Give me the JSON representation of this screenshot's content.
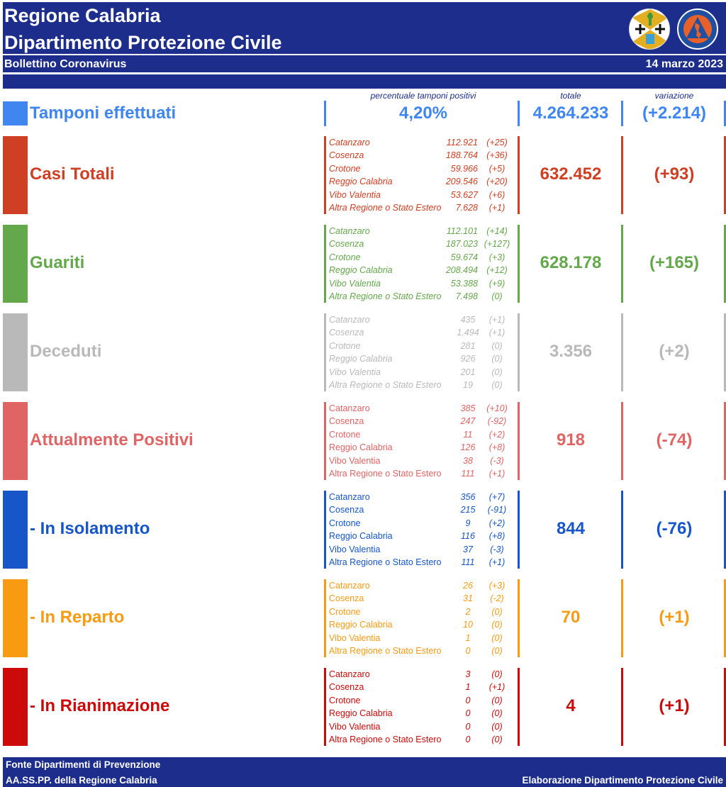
{
  "header": {
    "title_line1": "Regione Calabria",
    "title_line2": "Dipartimento Protezione Civile",
    "subtitle": "Bollettino Coronavirus",
    "date": "14 marzo 2023",
    "logos": [
      "regione-calabria-emblem",
      "protezione-civile-emblem"
    ],
    "colors": {
      "banner": "#1d2d8c",
      "text": "#ffffff"
    }
  },
  "column_headers": {
    "percent": "percentuale tamponi positivi",
    "total": "totale",
    "variation": "variazione"
  },
  "tamponi": {
    "label": "Tamponi effettuati",
    "percent_positive": "4,20%",
    "total": "4.264.233",
    "variation": "(+2.214)",
    "color": "#3f86f0"
  },
  "sections": [
    {
      "key": "casi_totali",
      "label": "Casi Totali",
      "color": "#cf3f23",
      "total": "632.452",
      "variation": "(+93)",
      "rows": [
        {
          "name": "Catanzaro",
          "value": "112.921",
          "delta": "(+25)"
        },
        {
          "name": "Cosenza",
          "value": "188.764",
          "delta": "(+36)"
        },
        {
          "name": "Crotone",
          "value": "59.966",
          "delta": "(+5)"
        },
        {
          "name": "Reggio Calabria",
          "value": "209.546",
          "delta": "(+20)"
        },
        {
          "name": "Vibo Valentia",
          "value": "53.627",
          "delta": "(+6)"
        },
        {
          "name": "Altra Regione o Stato Estero",
          "value": "7.628",
          "delta": "(+1)"
        }
      ]
    },
    {
      "key": "guariti",
      "label": "Guariti",
      "color": "#64a84c",
      "total": "628.178",
      "variation": "(+165)",
      "rows": [
        {
          "name": "Catanzaro",
          "value": "112.101",
          "delta": "(+14)"
        },
        {
          "name": "Cosenza",
          "value": "187.023",
          "delta": "(+127)"
        },
        {
          "name": "Crotone",
          "value": "59.674",
          "delta": "(+3)"
        },
        {
          "name": "Reggio Calabria",
          "value": "208.494",
          "delta": "(+12)"
        },
        {
          "name": "Vibo Valentia",
          "value": "53.388",
          "delta": "(+9)"
        },
        {
          "name": "Altra Regione o Stato Estero",
          "value": "7.498",
          "delta": "(0)"
        }
      ]
    },
    {
      "key": "deceduti",
      "label": "Deceduti",
      "color": "#b9b9b9",
      "total": "3.356",
      "variation": "(+2)",
      "rows": [
        {
          "name": "Catanzaro",
          "value": "435",
          "delta": "(+1)"
        },
        {
          "name": "Cosenza",
          "value": "1.494",
          "delta": "(+1)"
        },
        {
          "name": "Crotone",
          "value": "281",
          "delta": "(0)"
        },
        {
          "name": "Reggio Calabria",
          "value": "926",
          "delta": "(0)"
        },
        {
          "name": "Vibo Valentia",
          "value": "201",
          "delta": "(0)"
        },
        {
          "name": "Altra Regione o Stato Estero",
          "value": "19",
          "delta": "(0)"
        }
      ]
    },
    {
      "key": "attualmente_positivi",
      "label": "Attualmente Positivi",
      "color": "#e06464",
      "total": "918",
      "variation": "(-74)",
      "rows": [
        {
          "name": "Catanzaro",
          "value": "385",
          "delta": "(+10)"
        },
        {
          "name": "Cosenza",
          "value": "247",
          "delta": "(-92)"
        },
        {
          "name": "Crotone",
          "value": "11",
          "delta": "(+2)"
        },
        {
          "name": "Reggio Calabria",
          "value": "126",
          "delta": "(+8)"
        },
        {
          "name": "Vibo Valentia",
          "value": "38",
          "delta": "(-3)"
        },
        {
          "name": "Altra Regione o Stato Estero",
          "value": "111",
          "delta": "(+1)"
        }
      ]
    },
    {
      "key": "in_isolamento",
      "label": " - In Isolamento",
      "color": "#1656c8",
      "total": "844",
      "variation": "(-76)",
      "rows": [
        {
          "name": "Catanzaro",
          "value": "356",
          "delta": "(+7)"
        },
        {
          "name": "Cosenza",
          "value": "215",
          "delta": "(-91)"
        },
        {
          "name": "Crotone",
          "value": "9",
          "delta": "(+2)"
        },
        {
          "name": "Reggio Calabria",
          "value": "116",
          "delta": "(+8)"
        },
        {
          "name": "Vibo Valentia",
          "value": "37",
          "delta": "(-3)"
        },
        {
          "name": "Altra Regione o Stato Estero",
          "value": "111",
          "delta": "(+1)"
        }
      ]
    },
    {
      "key": "in_reparto",
      "label": " - In Reparto",
      "color": "#f99b12",
      "total": "70",
      "variation": "(+1)",
      "rows": [
        {
          "name": "Catanzaro",
          "value": "26",
          "delta": "(+3)"
        },
        {
          "name": "Cosenza",
          "value": "31",
          "delta": "(-2)"
        },
        {
          "name": "Crotone",
          "value": "2",
          "delta": "(0)"
        },
        {
          "name": "Reggio Calabria",
          "value": "10",
          "delta": "(0)"
        },
        {
          "name": "Vibo Valentia",
          "value": "1",
          "delta": "(0)"
        },
        {
          "name": "Altra Regione o Stato Estero",
          "value": "0",
          "delta": "(0)"
        }
      ]
    },
    {
      "key": "in_rianimazione",
      "label": " - In Rianimazione",
      "color": "#cc0a0a",
      "total": "4",
      "variation": "(+1)",
      "rows": [
        {
          "name": "Catanzaro",
          "value": "3",
          "delta": "(0)"
        },
        {
          "name": "Cosenza",
          "value": "1",
          "delta": "(+1)"
        },
        {
          "name": "Crotone",
          "value": "0",
          "delta": "(0)"
        },
        {
          "name": "Reggio Calabria",
          "value": "0",
          "delta": "(0)"
        },
        {
          "name": "Vibo Valentia",
          "value": "0",
          "delta": "(0)"
        },
        {
          "name": "Altra Regione o Stato Estero",
          "value": "0",
          "delta": "(0)"
        }
      ]
    }
  ],
  "footer": {
    "source_line1": "Fonte Dipartimenti di Prevenzione",
    "source_line2": "AA.SS.PP.  della Regione Calabria",
    "credit": "Elaborazione Dipartimento Protezione Civile"
  }
}
